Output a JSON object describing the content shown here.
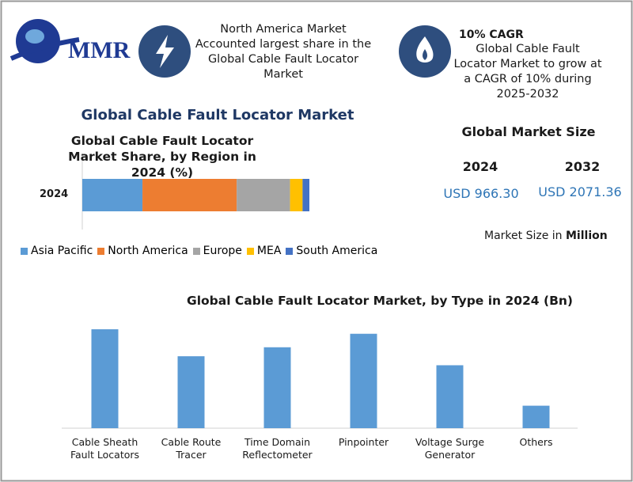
{
  "header": {
    "logo": "MMR",
    "highlight_1": "North America Market Accounted largest share in the Global Cable Fault Locator Market",
    "highlight_2_title": "10% CAGR",
    "highlight_2_text": "Global Cable Fault Locator Market to grow at a CAGR of 10% during 2025-2032"
  },
  "main_title": "Global Cable Fault Locator Market",
  "market_size": {
    "title": "Global Market Size",
    "years": [
      "2024",
      "2032"
    ],
    "values": [
      "USD 966.30",
      "USD 2071.36"
    ],
    "unit_note": "Market Size in",
    "unit": "Million"
  },
  "chart_data": [
    {
      "type": "stacked-bar",
      "title": "Global Cable Fault Locator Market Share, by Region in 2024 (%)",
      "categories": [
        "2024"
      ],
      "xlim": [
        0,
        100
      ],
      "legend": "bottom",
      "series": [
        {
          "name": "Asia Pacific",
          "color": "#5b9bd5",
          "values": [
            26.5
          ]
        },
        {
          "name": "North America",
          "color": "#ed7d31",
          "values": [
            41.5
          ]
        },
        {
          "name": "Europe",
          "color": "#a5a5a5",
          "values": [
            23.5
          ]
        },
        {
          "name": "MEA",
          "color": "#ffc000",
          "values": [
            5.5
          ]
        },
        {
          "name": "South America",
          "color": "#4472c4",
          "values": [
            3
          ]
        }
      ]
    },
    {
      "type": "bar",
      "title": "Global Cable Fault Locator Market, by Type in 2024 (Bn)",
      "categories": [
        "Cable Sheath Fault Locators",
        "Cable Route Tracer",
        "Time Domain Reflectometer",
        "Pinpointer",
        "Voltage Surge Generator",
        "Others"
      ],
      "values": [
        0.22,
        0.16,
        0.18,
        0.21,
        0.14,
        0.05
      ],
      "color": "#5b9bd5",
      "ylim": [
        0,
        0.25
      ]
    }
  ]
}
